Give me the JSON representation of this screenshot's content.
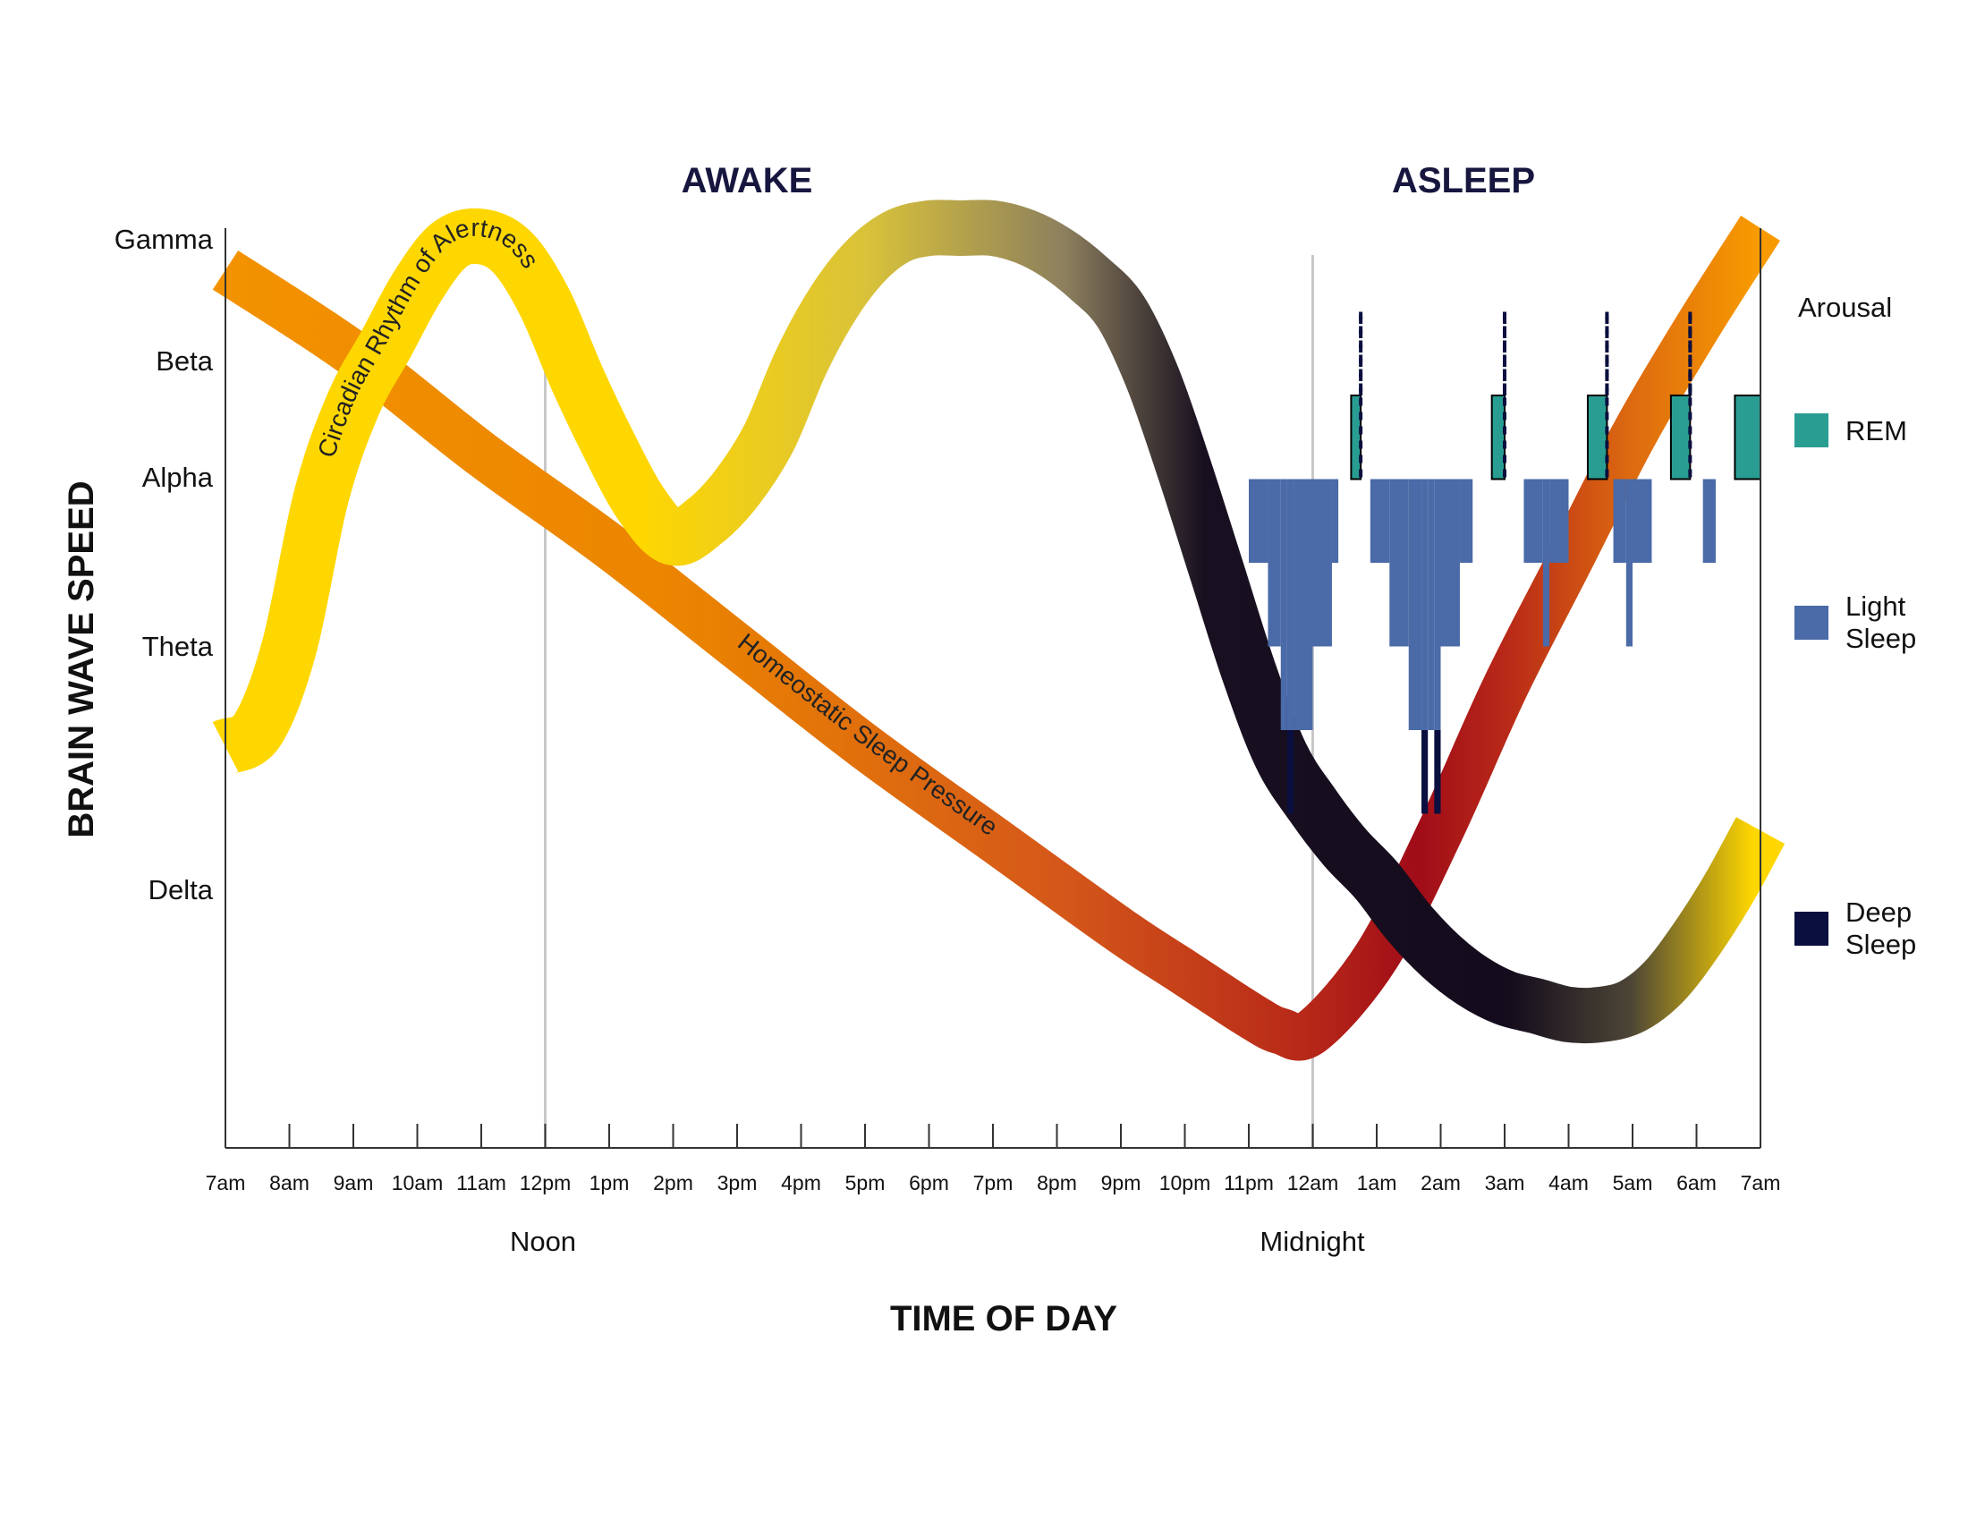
{
  "chart_data": {
    "type": "line",
    "phases": [
      "AWAKE",
      "ASLEEP"
    ],
    "xlabel": "TIME OF DAY",
    "ylabel": "BRAIN WAVE SPEED",
    "x_ticks": [
      "7am",
      "8am",
      "9am",
      "10am",
      "11am",
      "12pm",
      "1pm",
      "2pm",
      "3pm",
      "4pm",
      "5pm",
      "6pm",
      "7pm",
      "8pm",
      "9pm",
      "10pm",
      "11pm",
      "12am",
      "1am",
      "2am",
      "3am",
      "4am",
      "5am",
      "6am",
      "7am"
    ],
    "x_range_hours": [
      7,
      31
    ],
    "y_levels": [
      "Gamma",
      "Beta",
      "Alpha",
      "Theta",
      "Delta"
    ],
    "markers": [
      {
        "label": "Noon",
        "x": 12
      },
      {
        "label": "Midnight",
        "x": 24
      }
    ],
    "y_range": [
      0,
      100
    ],
    "series": [
      {
        "name": "Circadian Rhythm of Alertness",
        "x": [
          7,
          7.5,
          8,
          8.5,
          9,
          9.5,
          10,
          10.5,
          11,
          11.5,
          12,
          12.5,
          13,
          13.5,
          14,
          14.5,
          15,
          15.5,
          16,
          16.5,
          17,
          17.5,
          18,
          18.5,
          19,
          19.5,
          20,
          20.5,
          21,
          21.5,
          22,
          22.5,
          23,
          23.5,
          24,
          24.5,
          25,
          25.5,
          26,
          26.5,
          27,
          27.5,
          28,
          28.5,
          29,
          29.5,
          30,
          30.5,
          31
        ],
        "y": [
          38,
          40,
          50,
          68,
          79,
          86,
          93,
          98,
          99,
          97,
          91,
          82,
          74,
          67,
          63,
          65,
          69,
          75,
          84,
          91,
          96,
          99,
          100,
          100,
          100,
          99,
          97,
          94,
          90,
          82,
          71,
          59,
          47,
          37,
          31,
          26,
          22,
          17,
          13,
          10,
          8,
          7,
          6,
          6,
          7,
          10,
          15,
          21,
          28
        ]
      },
      {
        "name": "Homeostatic Sleep Pressure",
        "x": [
          7,
          9,
          11,
          13,
          15,
          17,
          19,
          21,
          22,
          23,
          23.5,
          24,
          25,
          26,
          27,
          28,
          29,
          30,
          31
        ],
        "y": [
          95,
          85,
          73,
          62,
          50,
          38,
          27,
          16,
          11,
          6,
          4,
          4,
          13,
          28,
          45,
          60,
          75,
          88,
          100
        ]
      }
    ],
    "hypnogram": {
      "stages": [
        "Arousal",
        "REM",
        "Light Sleep",
        "Deep Sleep"
      ],
      "points": [
        [
          22.8,
          90
        ],
        [
          22.8,
          70
        ],
        [
          23.0,
          70
        ],
        [
          23.0,
          60
        ],
        [
          23.3,
          60
        ],
        [
          23.3,
          50
        ],
        [
          23.5,
          50
        ],
        [
          23.5,
          40
        ],
        [
          23.6,
          40
        ],
        [
          23.6,
          30
        ],
        [
          23.7,
          30
        ],
        [
          23.7,
          40
        ],
        [
          24.0,
          40
        ],
        [
          24.0,
          50
        ],
        [
          24.3,
          50
        ],
        [
          24.3,
          60
        ],
        [
          24.4,
          60
        ],
        [
          24.4,
          70
        ],
        [
          24.6,
          70
        ],
        [
          24.6,
          80
        ],
        [
          24.75,
          80
        ],
        [
          24.75,
          90
        ],
        [
          24.75,
          70
        ],
        [
          24.9,
          70
        ],
        [
          24.9,
          60
        ],
        [
          25.2,
          60
        ],
        [
          25.2,
          50
        ],
        [
          25.5,
          50
        ],
        [
          25.5,
          40
        ],
        [
          25.7,
          40
        ],
        [
          25.7,
          30
        ],
        [
          25.8,
          30
        ],
        [
          25.8,
          40
        ],
        [
          25.9,
          40
        ],
        [
          25.9,
          30
        ],
        [
          26.0,
          30
        ],
        [
          26.0,
          50
        ],
        [
          26.3,
          50
        ],
        [
          26.3,
          60
        ],
        [
          26.5,
          60
        ],
        [
          26.5,
          70
        ],
        [
          26.8,
          70
        ],
        [
          26.8,
          80
        ],
        [
          27.0,
          80
        ],
        [
          27.0,
          90
        ],
        [
          27.0,
          70
        ],
        [
          27.3,
          70
        ],
        [
          27.3,
          60
        ],
        [
          27.6,
          60
        ],
        [
          27.6,
          50
        ],
        [
          27.7,
          50
        ],
        [
          27.7,
          60
        ],
        [
          28.0,
          60
        ],
        [
          28.0,
          70
        ],
        [
          28.3,
          70
        ],
        [
          28.3,
          80
        ],
        [
          28.6,
          80
        ],
        [
          28.6,
          90
        ],
        [
          28.6,
          70
        ],
        [
          28.7,
          70
        ],
        [
          28.7,
          60
        ],
        [
          28.9,
          60
        ],
        [
          28.9,
          50
        ],
        [
          29.0,
          50
        ],
        [
          29.0,
          60
        ],
        [
          29.3,
          60
        ],
        [
          29.3,
          70
        ],
        [
          29.6,
          70
        ],
        [
          29.6,
          80
        ],
        [
          29.9,
          80
        ],
        [
          29.9,
          90
        ],
        [
          29.9,
          70
        ],
        [
          30.1,
          70
        ],
        [
          30.1,
          60
        ],
        [
          30.3,
          60
        ],
        [
          30.3,
          70
        ],
        [
          30.6,
          70
        ],
        [
          30.6,
          80
        ],
        [
          31.0,
          80
        ]
      ]
    },
    "legend": [
      {
        "label": "Arousal",
        "color": ""
      },
      {
        "label": "REM",
        "color": "#2a9d93"
      },
      {
        "label": "Light Sleep",
        "color": "#4a6aa8"
      },
      {
        "label": "Deep Sleep",
        "color": "#0a0f3f"
      }
    ],
    "legend_position": "right",
    "grid": false,
    "colors": {
      "circadian_start": "#ffd700",
      "circadian_end": "#140c1c",
      "pressure_start": "#f39200",
      "pressure_end": "#a3101a",
      "rem": "#2a9d93",
      "light_sleep": "#4a6aa8",
      "deep_sleep": "#0a0f3f",
      "axis": "#333333",
      "marker_line": "#c8c8c8",
      "phase_title": "#16163f"
    }
  }
}
